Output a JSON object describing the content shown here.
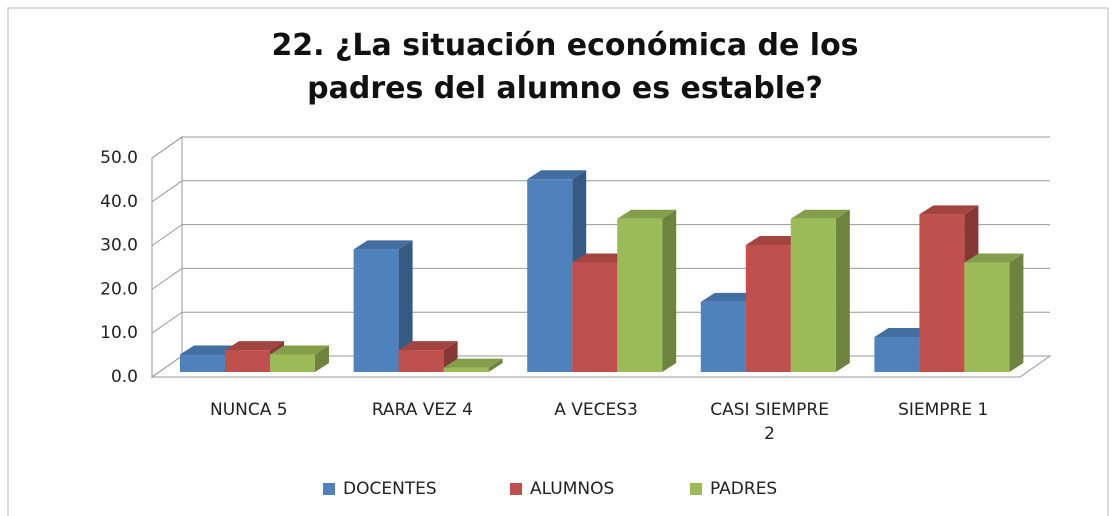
{
  "chart_data": {
    "type": "bar3d",
    "title": "22. ¿La situación económica de los padres del alumno es estable?",
    "categories": [
      "NUNCA 5",
      "RARA VEZ 4",
      "A VECES3",
      "CASI SIEMPRE 2",
      "SIEMPRE 1"
    ],
    "series": [
      {
        "name": "DOCENTES",
        "color": "#4f81bd",
        "values": [
          4,
          28,
          44,
          16,
          8
        ]
      },
      {
        "name": "ALUMNOS",
        "color": "#c0504d",
        "values": [
          5,
          5,
          25,
          29,
          36
        ]
      },
      {
        "name": "PADRES",
        "color": "#9bbb59",
        "values": [
          4,
          1,
          35,
          35,
          25
        ]
      }
    ],
    "ylim": [
      0,
      50
    ],
    "yticks": [
      {
        "value": 0,
        "label": "0.0"
      },
      {
        "value": 10,
        "label": "10.0"
      },
      {
        "value": 20,
        "label": "20.0"
      },
      {
        "value": 30,
        "label": "30.0"
      },
      {
        "value": 40,
        "label": "40.0"
      },
      {
        "value": 50,
        "label": "50.0"
      }
    ],
    "grid": true,
    "legend": "bottom"
  }
}
